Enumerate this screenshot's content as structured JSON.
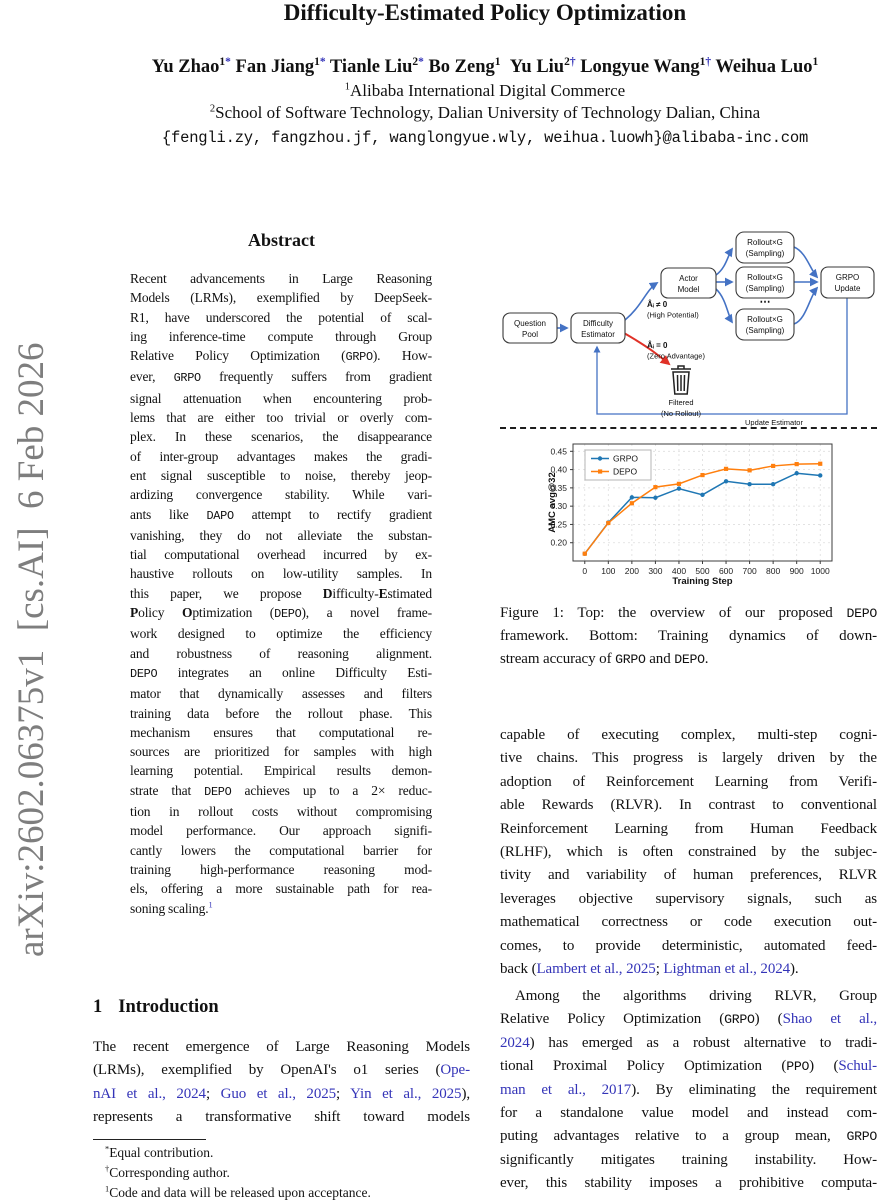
{
  "watermark": "arXiv:2602.06375v1  [cs.AI]  6 Feb 2026",
  "header": {
    "title": "Difficulty-Estimated Policy Optimization",
    "authors_rich": "Yu Zhao^1~*~^ Fan Jiang^1~*~^ Tianle Liu^2~*~^ Bo Zeng^1^ Yu Liu^2~†~^ Longyue Wang^1~†~^ Weihua Luo^1^",
    "affiliation1": "^1^Alibaba International Digital Commerce",
    "affiliation2": "^2^School of Software Technology, Dalian University of Technology Dalian, China",
    "email": "{fengli.zy, fangzhou.jf, wanglongyue.wly, weihua.luowh}@alibaba-inc.com"
  },
  "abstract": {
    "heading": "Abstract",
    "lines": [
      "Recent advancements in Large Reasoning",
      "Models (LRMs), exemplified by DeepSeek-",
      "R1, have underscored the potential of scal-",
      "ing inference-time compute through Group",
      "Relative Policy Optimization (`GRPO`). How-",
      "ever, `GRPO` frequently suffers from gradient",
      "signal attenuation when encountering prob-",
      "lems that are either too trivial or overly com-",
      "plex. In these scenarios, the disappearance",
      "of inter-group advantages makes the gradi-",
      "ent signal susceptible to noise, thereby jeop-",
      "ardizing convergence stability. While vari-",
      "ants like `DAPO` attempt to rectify gradient",
      "vanishing, they do not alleviate the substan-",
      "tial computational overhead incurred by ex-",
      "haustive rollouts on low-utility samples. In",
      "this paper, we propose *D*ifficulty-*E*stimated",
      "*P*olicy *O*ptimization (`DEPO`), a novel frame-",
      "work designed to optimize the efficiency",
      "and robustness of reasoning alignment.",
      "`DEPO` integrates an online Difficulty Esti-",
      "mator that dynamically assesses and filters",
      "training data before the rollout phase. This",
      "mechanism ensures that computational re-",
      "sources are prioritized for samples with high",
      "learning potential. Empirical results demon-",
      "strate that `DEPO` achieves up to a 2× reduc-",
      "tion in rollout costs without compromising",
      "model performance. Our approach signifi-",
      "cantly lowers the computational barrier for",
      "training high-performance reasoning mod-",
      "els, offering a more sustainable path for rea-",
      "soning scaling.^~1~^"
    ]
  },
  "intro": {
    "number": "1",
    "heading": "Introduction",
    "lines": [
      "The recent emergence of Large Reasoning Models",
      "(LRMs), exemplified by OpenAI's o1 series (~Ope-~",
      "~nAI et al., 2024~; ~Guo et al., 2025~; ~Yin et al., 2025~),",
      "represents a transformative shift toward models"
    ]
  },
  "footnotes": {
    "lines": [
      "^*^Equal contribution.",
      "^†^Corresponding author.",
      "^1^Code and data will be released upon acceptance."
    ]
  },
  "figure": {
    "diagram": {
      "nodes": {
        "question_pool": [
          "Question",
          "Pool"
        ],
        "difficulty_estimator": [
          "Difficulty",
          "Estimator"
        ],
        "actor_model": [
          "Actor",
          "Model"
        ],
        "rollout_1": [
          "Rollout×G",
          "(Sampling)"
        ],
        "rollout_2": [
          "Rollout×G",
          "(Sampling)"
        ],
        "rollout_3": [
          "Rollout×G",
          "(Sampling)"
        ],
        "grpo_update": [
          "GRPO",
          "Update"
        ],
        "dots": "⋯"
      },
      "labels": {
        "high_potential": "Âᵢ ≠ 0",
        "high_potential_sub": "(High Potential)",
        "zero_advantage": "Âᵢ = 0",
        "zero_advantage_sub": "(Zero Advantage)",
        "filtered": "Filtered",
        "filtered_sub": "(No Rollout)",
        "update_estimator": "Update Estimator"
      },
      "colors": {
        "arrow": "#4472c4",
        "discard": "#e03127",
        "box_border": "#3a3a3a"
      }
    },
    "caption_lines": [
      "Figure 1: Top: the overview of our proposed `DEPO`",
      "framework. Bottom: Training dynamics of down-",
      "stream accuracy of `GRPO` and `DEPO`."
    ]
  },
  "right_column": {
    "para1_lines": [
      "capable of executing complex, multi-step cogni-",
      "tive chains. This progress is largely driven by the",
      "adoption of Reinforcement Learning from Verifi-",
      "able Rewards (RLVR). In contrast to conventional",
      "Reinforcement Learning from Human Feedback",
      "(RLHF), which is often constrained by the subjec-",
      "tivity and variability of human preferences, RLVR",
      "leverages objective supervisory signals, such as",
      "mathematical correctness or code execution out-",
      "comes, to provide deterministic, automated feed-",
      "back (~Lambert et al., 2025~; ~Lightman et al., 2024~)."
    ],
    "para2_lines": [
      "Among the algorithms driving RLVR, Group",
      "Relative Policy Optimization (`GRPO`) (~Shao et al.,~",
      "~2024~) has emerged as a robust alternative to tradi-",
      "tional Proximal Policy Optimization (`PPO`) (~Schul-~",
      "~man et al., 2017~). By eliminating the requirement",
      "for a standalone value model and instead com-",
      "puting advantages relative to a group mean, `GRPO`",
      "significantly mitigates training instability. How-",
      "ever, this stability imposes a prohibitive computa-"
    ]
  },
  "chart_data": {
    "type": "line",
    "title": "",
    "xlabel": "Training Step",
    "ylabel": "AMC avg@32",
    "x": [
      0,
      100,
      200,
      300,
      400,
      500,
      600,
      700,
      800,
      900,
      1000
    ],
    "series": [
      {
        "name": "GRPO",
        "color": "#1f77b4",
        "marker": "circle",
        "values": [
          0.17,
          0.255,
          0.324,
          0.323,
          0.348,
          0.331,
          0.368,
          0.36,
          0.36,
          0.39,
          0.384
        ]
      },
      {
        "name": "DEPO",
        "color": "#ff7f0e",
        "marker": "square",
        "values": [
          0.17,
          0.254,
          0.308,
          0.352,
          0.361,
          0.385,
          0.402,
          0.398,
          0.41,
          0.415,
          0.416
        ]
      }
    ],
    "xlim": [
      -50,
      1050
    ],
    "ylim": [
      0.15,
      0.47
    ],
    "xticks": [
      0,
      100,
      200,
      300,
      400,
      500,
      600,
      700,
      800,
      900,
      1000
    ],
    "yticks": [
      0.2,
      0.25,
      0.3,
      0.35,
      0.4,
      0.45
    ],
    "grid": true,
    "legend_position": "upper left"
  }
}
